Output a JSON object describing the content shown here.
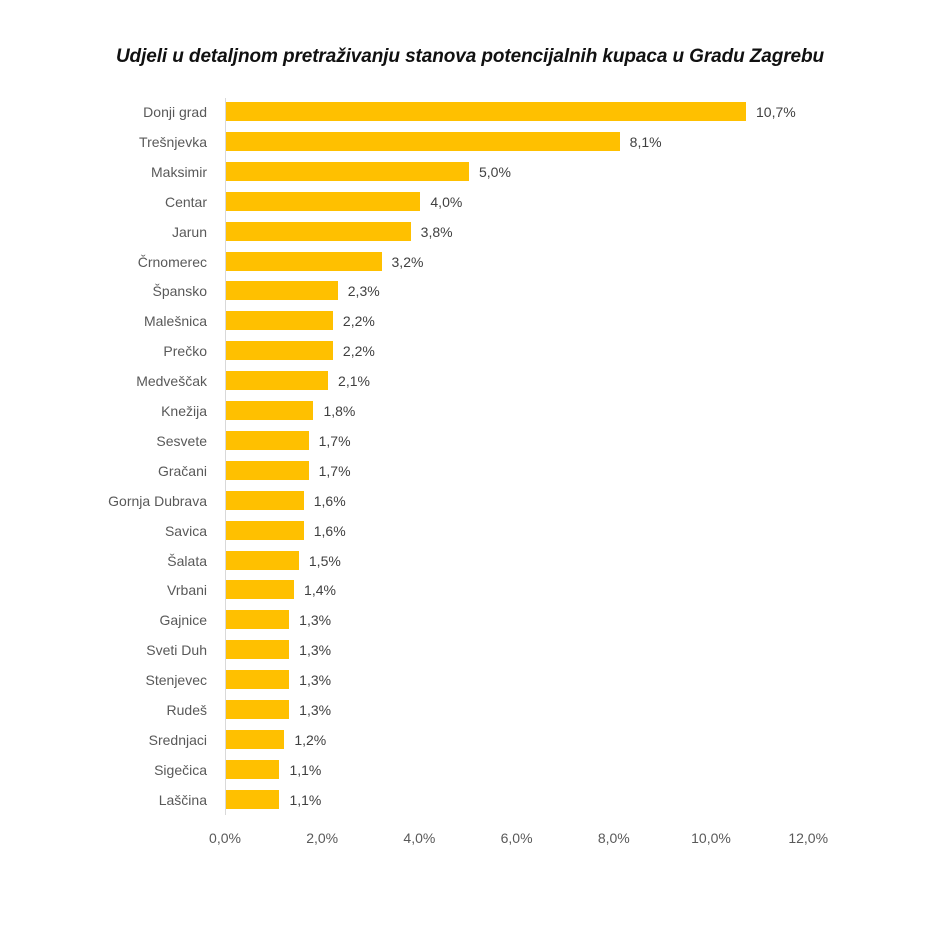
{
  "chart_data": {
    "type": "bar",
    "orientation": "horizontal",
    "title": "Udjeli u detaljnom pretraživanju stanova potencijalnih kupaca u Gradu Zagrebu",
    "xlabel": "",
    "ylabel": "",
    "xlim": [
      0,
      12
    ],
    "x_ticks": [
      0,
      2,
      4,
      6,
      8,
      10,
      12
    ],
    "x_tick_labels": [
      "0,0%",
      "2,0%",
      "4,0%",
      "6,0%",
      "8,0%",
      "10,0%",
      "12,0%"
    ],
    "grid": false,
    "legend": null,
    "bar_color": "#ffc000",
    "unit": "%",
    "categories": [
      "Donji grad",
      "Trešnjevka",
      "Maksimir",
      "Centar",
      "Jarun",
      "Črnomerec",
      "Špansko",
      "Malešnica",
      "Prečko",
      "Medveščak",
      "Knežija",
      "Sesvete",
      "Gračani",
      "Gornja Dubrava",
      "Savica",
      "Šalata",
      "Vrbani",
      "Gajnice",
      "Sveti Duh",
      "Stenjevec",
      "Rudeš",
      "Srednjaci",
      "Sigečica",
      "Laščina"
    ],
    "values": [
      10.7,
      8.1,
      5.0,
      4.0,
      3.8,
      3.2,
      2.3,
      2.2,
      2.2,
      2.1,
      1.8,
      1.7,
      1.7,
      1.6,
      1.6,
      1.5,
      1.4,
      1.3,
      1.3,
      1.3,
      1.3,
      1.2,
      1.1,
      1.1
    ],
    "data_labels": [
      "10,7%",
      "8,1%",
      "5,0%",
      "4,0%",
      "3,8%",
      "3,2%",
      "2,3%",
      "2,2%",
      "2,2%",
      "2,1%",
      "1,8%",
      "1,7%",
      "1,7%",
      "1,6%",
      "1,6%",
      "1,5%",
      "1,4%",
      "1,3%",
      "1,3%",
      "1,3%",
      "1,3%",
      "1,2%",
      "1,1%",
      "1,1%"
    ]
  }
}
